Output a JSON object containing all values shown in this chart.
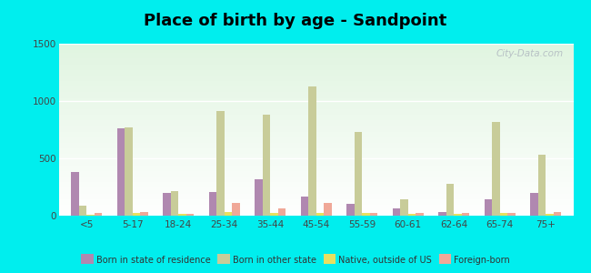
{
  "title": "Place of birth by age - Sandpoint",
  "categories": [
    "<5",
    "5-17",
    "18-24",
    "25-34",
    "35-44",
    "45-54",
    "55-59",
    "60-61",
    "62-64",
    "65-74",
    "75+"
  ],
  "series": {
    "Born in state of residence": [
      380,
      760,
      195,
      210,
      320,
      165,
      100,
      65,
      30,
      145,
      195
    ],
    "Born in other state": [
      90,
      770,
      215,
      910,
      880,
      1130,
      730,
      145,
      275,
      820,
      530
    ],
    "Native, outside of US": [
      10,
      20,
      15,
      30,
      25,
      20,
      20,
      15,
      15,
      20,
      15
    ],
    "Foreign-born": [
      20,
      30,
      15,
      110,
      65,
      115,
      20,
      20,
      20,
      20,
      35
    ]
  },
  "colors": {
    "Born in state of residence": "#b088b0",
    "Born in other state": "#c8cc99",
    "Native, outside of US": "#e8e060",
    "Foreign-born": "#f0a898"
  },
  "ylim": [
    0,
    1500
  ],
  "yticks": [
    0,
    500,
    1000,
    1500
  ],
  "outer_background": "#00eeee",
  "bar_width": 0.17,
  "title_fontsize": 13,
  "watermark": "City-Data.com"
}
